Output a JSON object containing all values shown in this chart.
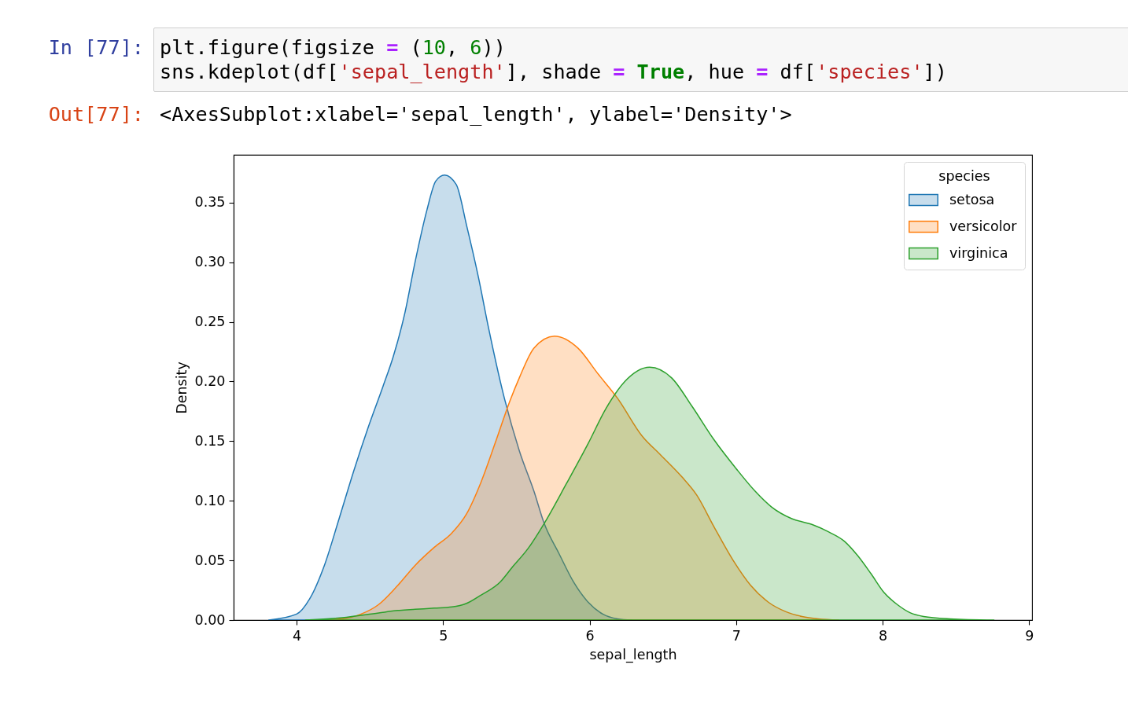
{
  "chart_data": {
    "type": "area",
    "annotations": [
      "In [77]:",
      "plt.figure(figsize = (10, 6))",
      "sns.kdeplot(df['sepal_length'], shade = True, hue = df['species'])",
      "Out[77]:",
      "<AxesSubplot:xlabel='sepal_length', ylabel='Density'>"
    ],
    "xlabel": "sepal_length",
    "ylabel": "Density",
    "legend_title": "species",
    "legend": "top right",
    "grid": false,
    "xlim": [
      3.57,
      9.02
    ],
    "xticks": [
      4,
      5,
      6,
      7,
      8,
      9
    ],
    "ylim": [
      0,
      0.39
    ],
    "yticks": [
      {
        "value": 0,
        "label": "0.00"
      },
      0.05,
      {
        "value": 0.1,
        "label": "0.10"
      },
      0.15,
      {
        "value": 0.2,
        "label": "0.20"
      },
      0.25,
      {
        "value": 0.3,
        "label": "0.30"
      },
      0.35
    ],
    "series": [
      {
        "name": "setosa",
        "color": "#1f77b4",
        "x": [
          3.81,
          4.0,
          4.09,
          4.19,
          4.29,
          4.39,
          4.49,
          4.59,
          4.66,
          4.74,
          4.81,
          4.89,
          4.95,
          5.01,
          5.09,
          5.16,
          5.24,
          5.31,
          5.41,
          5.52,
          5.62,
          5.69,
          5.79,
          5.89,
          5.99,
          6.09,
          6.19,
          6.29
        ],
        "values": [
          0,
          0.005,
          0.018,
          0.046,
          0.085,
          0.125,
          0.162,
          0.196,
          0.221,
          0.258,
          0.301,
          0.344,
          0.368,
          0.373,
          0.365,
          0.331,
          0.288,
          0.245,
          0.19,
          0.142,
          0.108,
          0.081,
          0.056,
          0.032,
          0.015,
          0.005,
          0.001,
          0
        ]
      },
      {
        "name": "versicolor",
        "color": "#ff7f0e",
        "x": [
          4.14,
          4.31,
          4.44,
          4.56,
          4.69,
          4.81,
          4.94,
          5.06,
          5.16,
          5.26,
          5.36,
          5.46,
          5.52,
          5.62,
          5.76,
          5.92,
          6.06,
          6.19,
          6.36,
          6.48,
          6.63,
          6.73,
          6.85,
          6.98,
          7.1,
          7.22,
          7.34,
          7.45,
          7.56,
          7.7
        ],
        "values": [
          0,
          0.001,
          0.005,
          0.013,
          0.029,
          0.046,
          0.061,
          0.073,
          0.089,
          0.116,
          0.15,
          0.185,
          0.203,
          0.228,
          0.238,
          0.228,
          0.206,
          0.186,
          0.154,
          0.139,
          0.12,
          0.105,
          0.078,
          0.05,
          0.029,
          0.015,
          0.007,
          0.003,
          0.001,
          0
        ]
      },
      {
        "name": "virginica",
        "color": "#2ca02c",
        "x": [
          4.06,
          4.31,
          4.56,
          4.69,
          4.81,
          4.94,
          5.06,
          5.16,
          5.26,
          5.39,
          5.47,
          5.58,
          5.69,
          5.84,
          5.99,
          6.11,
          6.24,
          6.41,
          6.56,
          6.7,
          6.85,
          7.0,
          7.13,
          7.24,
          7.38,
          7.52,
          7.63,
          7.74,
          7.83,
          7.92,
          8.01,
          8.1,
          8.19,
          8.28,
          8.46,
          8.76
        ],
        "values": [
          0,
          0.002,
          0.006,
          0.008,
          0.009,
          0.01,
          0.011,
          0.014,
          0.021,
          0.032,
          0.044,
          0.06,
          0.081,
          0.114,
          0.148,
          0.177,
          0.2,
          0.212,
          0.203,
          0.179,
          0.151,
          0.127,
          0.108,
          0.095,
          0.085,
          0.08,
          0.074,
          0.066,
          0.054,
          0.039,
          0.023,
          0.013,
          0.006,
          0.003,
          0.001,
          0
        ]
      }
    ]
  }
}
